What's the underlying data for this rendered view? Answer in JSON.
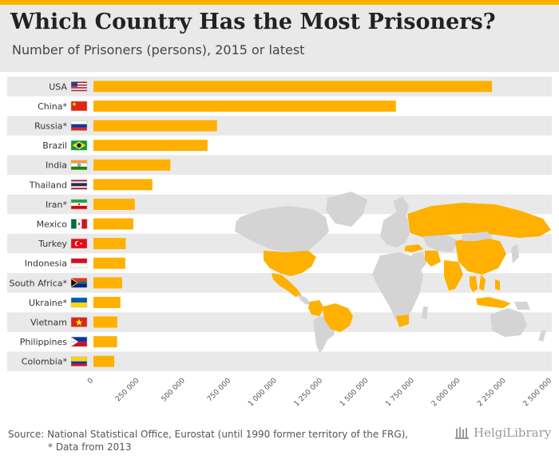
{
  "header": {
    "title": "Which Country Has the Most Prisoners?",
    "subtitle": "Number of Prisoners (persons), 2015 or latest"
  },
  "footer": {
    "source_line1": "Source: National Statistical Office, Eurostat (until 1990 former territory of the FRG),",
    "source_line2": "* Data from 2013",
    "brand": "HelgiLibrary"
  },
  "colors": {
    "bar": "#ffb000",
    "row_band": "#e9e9e9",
    "map_land": "#d4d4d4",
    "map_highlight": "#ffb000",
    "accent": "#ffb000"
  },
  "chart_data": {
    "type": "bar",
    "orientation": "horizontal",
    "title": "Which Country Has the Most Prisoners?",
    "subtitle": "Number of Prisoners (persons), 2015 or latest",
    "categories": [
      "USA",
      "China*",
      "Russia*",
      "Brazil",
      "India",
      "Thailand",
      "Iran*",
      "Mexico",
      "Turkey",
      "Indonesia",
      "South Africa*",
      "Ukraine*",
      "Vietnam",
      "Philippines",
      "Colombia*"
    ],
    "flags": [
      "us-flag-icon",
      "china-flag-icon",
      "russia-flag-icon",
      "brazil-flag-icon",
      "india-flag-icon",
      "thailand-flag-icon",
      "iran-flag-icon",
      "mexico-flag-icon",
      "turkey-flag-icon",
      "indonesia-flag-icon",
      "south-africa-flag-icon",
      "ukraine-flag-icon",
      "vietnam-flag-icon",
      "philippines-flag-icon",
      "colombia-flag-icon"
    ],
    "values": [
      2173800,
      1649804,
      673818,
      622202,
      419623,
      321347,
      225624,
      217857,
      176268,
      173713,
      156370,
      147112,
      130180,
      128850,
      113623
    ],
    "xlim": [
      0,
      2500000
    ],
    "xticks": [
      0,
      250000,
      500000,
      750000,
      1000000,
      1250000,
      1500000,
      1750000,
      2000000,
      2250000,
      2500000
    ],
    "xtick_labels": [
      "0",
      "250 000",
      "500 000",
      "750 000",
      "1 000 000",
      "1 250 000",
      "1 500 000",
      "1 750 000",
      "2 000 000",
      "2 250 000",
      "2 500 000"
    ],
    "xlabel": "",
    "ylabel": "",
    "grid": false,
    "legend": "none",
    "annotation": "world map highlighting listed countries"
  }
}
